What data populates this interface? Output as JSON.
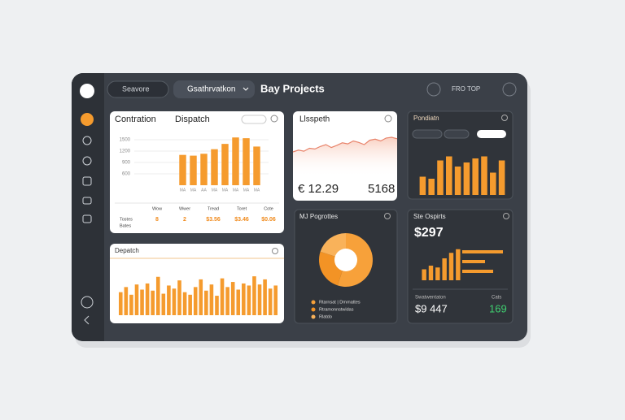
{
  "topbar": {
    "search": "Seavore",
    "dropdown": "Gsathrvatkon",
    "title": "Bay Projects",
    "action": "FRO TOP"
  },
  "panel_a": {
    "title": "Contration",
    "subtitle": "Dispatch",
    "color": "#f59b2e",
    "ylim": [
      300,
      1650
    ],
    "yticks": [
      600,
      900,
      1200,
      1500
    ],
    "categories": [
      "MA",
      "MA",
      "AA",
      "MA",
      "MA",
      "MA",
      "MA",
      "MA"
    ],
    "values": [
      1100,
      1080,
      1130,
      1250,
      1390,
      1560,
      1540,
      1320
    ],
    "table": {
      "columns": [
        "Wow",
        "Wwer",
        "Tread",
        "Toret",
        "Cote"
      ],
      "rows": [
        "Tostes",
        "Bates"
      ],
      "values": [
        "8",
        "2",
        "$3.56",
        "$3.46",
        "$0.06"
      ]
    }
  },
  "panel_b": {
    "title": "Llsspeth",
    "color": "#e8836a",
    "ylim": [
      0,
      100
    ],
    "values": [
      40,
      45,
      42,
      50,
      48,
      55,
      60,
      52,
      58,
      65,
      62,
      70,
      66,
      60,
      72,
      75,
      70,
      78,
      80,
      76
    ],
    "amount": "€ 12.29",
    "count": "5168"
  },
  "panel_c": {
    "title": "Pondiatn",
    "color": "#f59b2e",
    "ylim": [
      0,
      100
    ],
    "values": [
      45,
      40,
      85,
      95,
      70,
      80,
      90,
      95,
      55,
      85
    ]
  },
  "panel_d": {
    "title": "Depatch",
    "color": "#f59b2e",
    "ylim": [
      0,
      100
    ],
    "values": [
      45,
      55,
      40,
      60,
      50,
      62,
      48,
      75,
      42,
      58,
      52,
      68,
      45,
      40,
      55,
      70,
      48,
      60,
      38,
      72,
      55,
      65,
      50,
      62,
      58,
      76,
      60,
      70,
      52,
      58
    ]
  },
  "panel_e": {
    "title": "MJ Pogrottes",
    "values": [
      55,
      25,
      20
    ],
    "colors": [
      "#f7a13a",
      "#f39325",
      "#f9b25a"
    ],
    "legend": [
      "Rtarnsat | Dmrnattes",
      "Rtramonnstwidas",
      "Rlatdo"
    ]
  },
  "panel_f": {
    "title": "Ste Ospirts",
    "amount": "$297",
    "color": "#f59b2e",
    "ylim": [
      0,
      100
    ],
    "values": [
      30,
      40,
      35,
      60,
      75,
      85
    ],
    "xlim": [
      0,
      60
    ],
    "hvalues": [
      50,
      28,
      38
    ],
    "caption": "Swatwentaton",
    "caption_right": "Cats",
    "total": "$9 447",
    "count": "169"
  }
}
